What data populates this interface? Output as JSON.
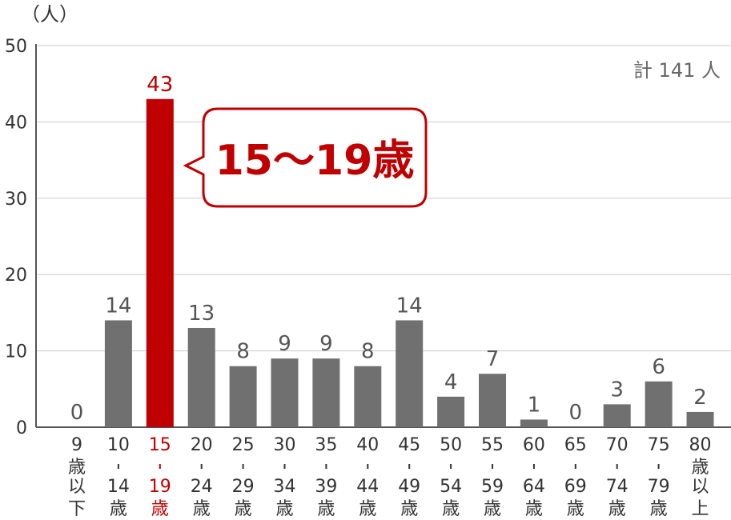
{
  "chart_data": {
    "type": "bar",
    "unit_label": "（人）",
    "total_label": "計 141 人",
    "categories": [
      [
        "9",
        "歳",
        "以",
        "下"
      ],
      [
        "10",
        "-",
        "14",
        "歳"
      ],
      [
        "15",
        "-",
        "19",
        "歳"
      ],
      [
        "20",
        "-",
        "24",
        "歳"
      ],
      [
        "25",
        "-",
        "29",
        "歳"
      ],
      [
        "30",
        "-",
        "34",
        "歳"
      ],
      [
        "35",
        "-",
        "39",
        "歳"
      ],
      [
        "40",
        "-",
        "44",
        "歳"
      ],
      [
        "45",
        "-",
        "49",
        "歳"
      ],
      [
        "50",
        "-",
        "54",
        "歳"
      ],
      [
        "55",
        "-",
        "59",
        "歳"
      ],
      [
        "60",
        "-",
        "64",
        "歳"
      ],
      [
        "65",
        "-",
        "69",
        "歳"
      ],
      [
        "70",
        "-",
        "74",
        "歳"
      ],
      [
        "75",
        "-",
        "79",
        "歳"
      ],
      [
        "80",
        "歳",
        "以",
        "上"
      ]
    ],
    "values": [
      0,
      14,
      43,
      13,
      8,
      9,
      9,
      8,
      14,
      4,
      7,
      1,
      0,
      3,
      6,
      2
    ],
    "y_ticks": [
      0,
      10,
      20,
      30,
      40,
      50
    ],
    "ylim": [
      0,
      50
    ],
    "grid": true,
    "highlight_index": 2,
    "callout_label": "15〜19歳",
    "colors": {
      "bar": "#707070",
      "highlight": "#c00000",
      "grid": "#cccccc",
      "axis": "#555555",
      "text": "#555555"
    }
  }
}
